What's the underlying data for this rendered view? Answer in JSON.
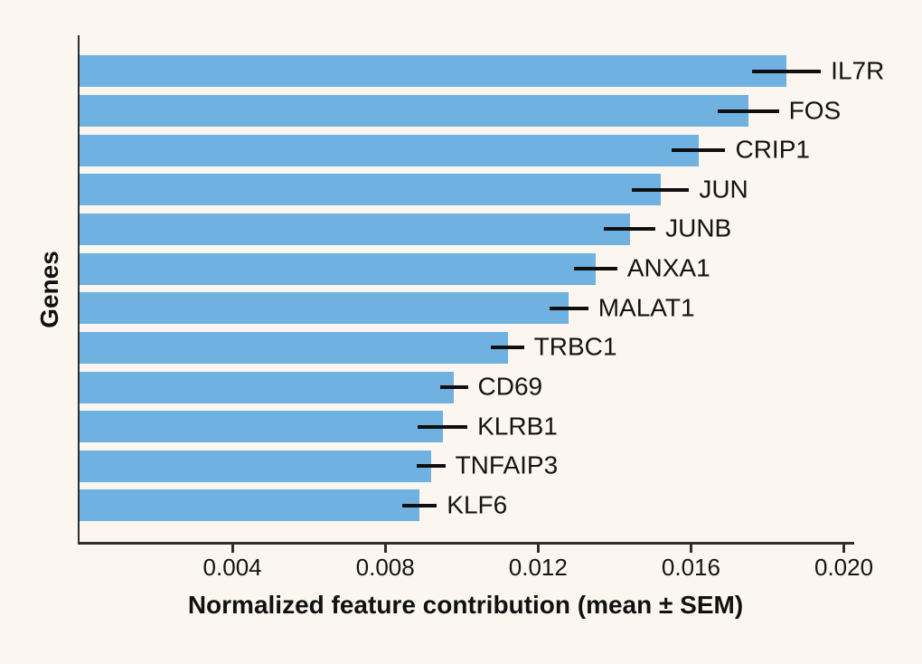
{
  "page": {
    "background_color": "#fbf6ef"
  },
  "chart_data": {
    "type": "bar",
    "orientation": "horizontal",
    "title": "",
    "xlabel": "Normalized feature contribution (mean ± SEM)",
    "ylabel": "Genes",
    "categories": [
      "IL7R",
      "FOS",
      "CRIP1",
      "JUN",
      "JUNB",
      "ANXA1",
      "MALAT1",
      "TRBC1",
      "CD69",
      "KLRB1",
      "TNFAIP3",
      "KLF6"
    ],
    "values": [
      0.0185,
      0.0175,
      0.0162,
      0.0152,
      0.0144,
      0.0135,
      0.0128,
      0.0112,
      0.0098,
      0.0095,
      0.0092,
      0.0089
    ],
    "errors": [
      0.0009,
      0.0008,
      0.0007,
      0.00075,
      0.00067,
      0.00057,
      0.00051,
      0.00043,
      0.00036,
      0.00065,
      0.00037,
      0.00045
    ],
    "error_type": "SEM",
    "xticks": [
      0.004,
      0.008,
      0.012,
      0.016,
      0.02
    ],
    "xtick_labels": [
      "0.004",
      "0.008",
      "0.012",
      "0.016",
      "0.020"
    ],
    "xlim": [
      0,
      0.0202
    ],
    "grid": false,
    "legend": null,
    "bar_color": "#6fb2e2",
    "errorbar_color": "#0f0f0f",
    "axis_color": "#2e2e2e",
    "text_color": "#141414",
    "background_color": "#fbf6ef"
  }
}
